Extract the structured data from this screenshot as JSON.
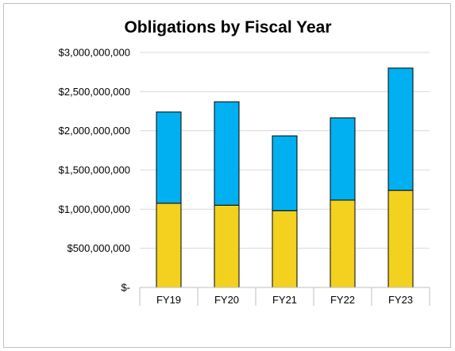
{
  "chart_data": {
    "type": "bar",
    "stacked": true,
    "title": "Obligations by Fiscal Year",
    "xlabel": "",
    "ylabel": "",
    "categories": [
      "FY19",
      "FY20",
      "FY21",
      "FY22",
      "FY23"
    ],
    "series": [
      {
        "values": [
          1075000000,
          1050000000,
          980000000,
          1115000000,
          1240000000
        ],
        "color": "#f2d11f"
      },
      {
        "values": [
          1165000000,
          1320000000,
          955000000,
          1050000000,
          1560000000
        ],
        "color": "#00b0f0"
      }
    ],
    "ylim": [
      0,
      3000000000
    ],
    "yticks": [
      0,
      500000000,
      1000000000,
      1500000000,
      2000000000,
      2500000000,
      3000000000
    ],
    "ytick_labels": [
      "$-",
      "$500,000,000",
      "$1,000,000,000",
      "$1,500,000,000",
      "$2,000,000,000",
      "$2,500,000,000",
      "$3,000,000,000"
    ],
    "grid": true,
    "legend": "none"
  }
}
